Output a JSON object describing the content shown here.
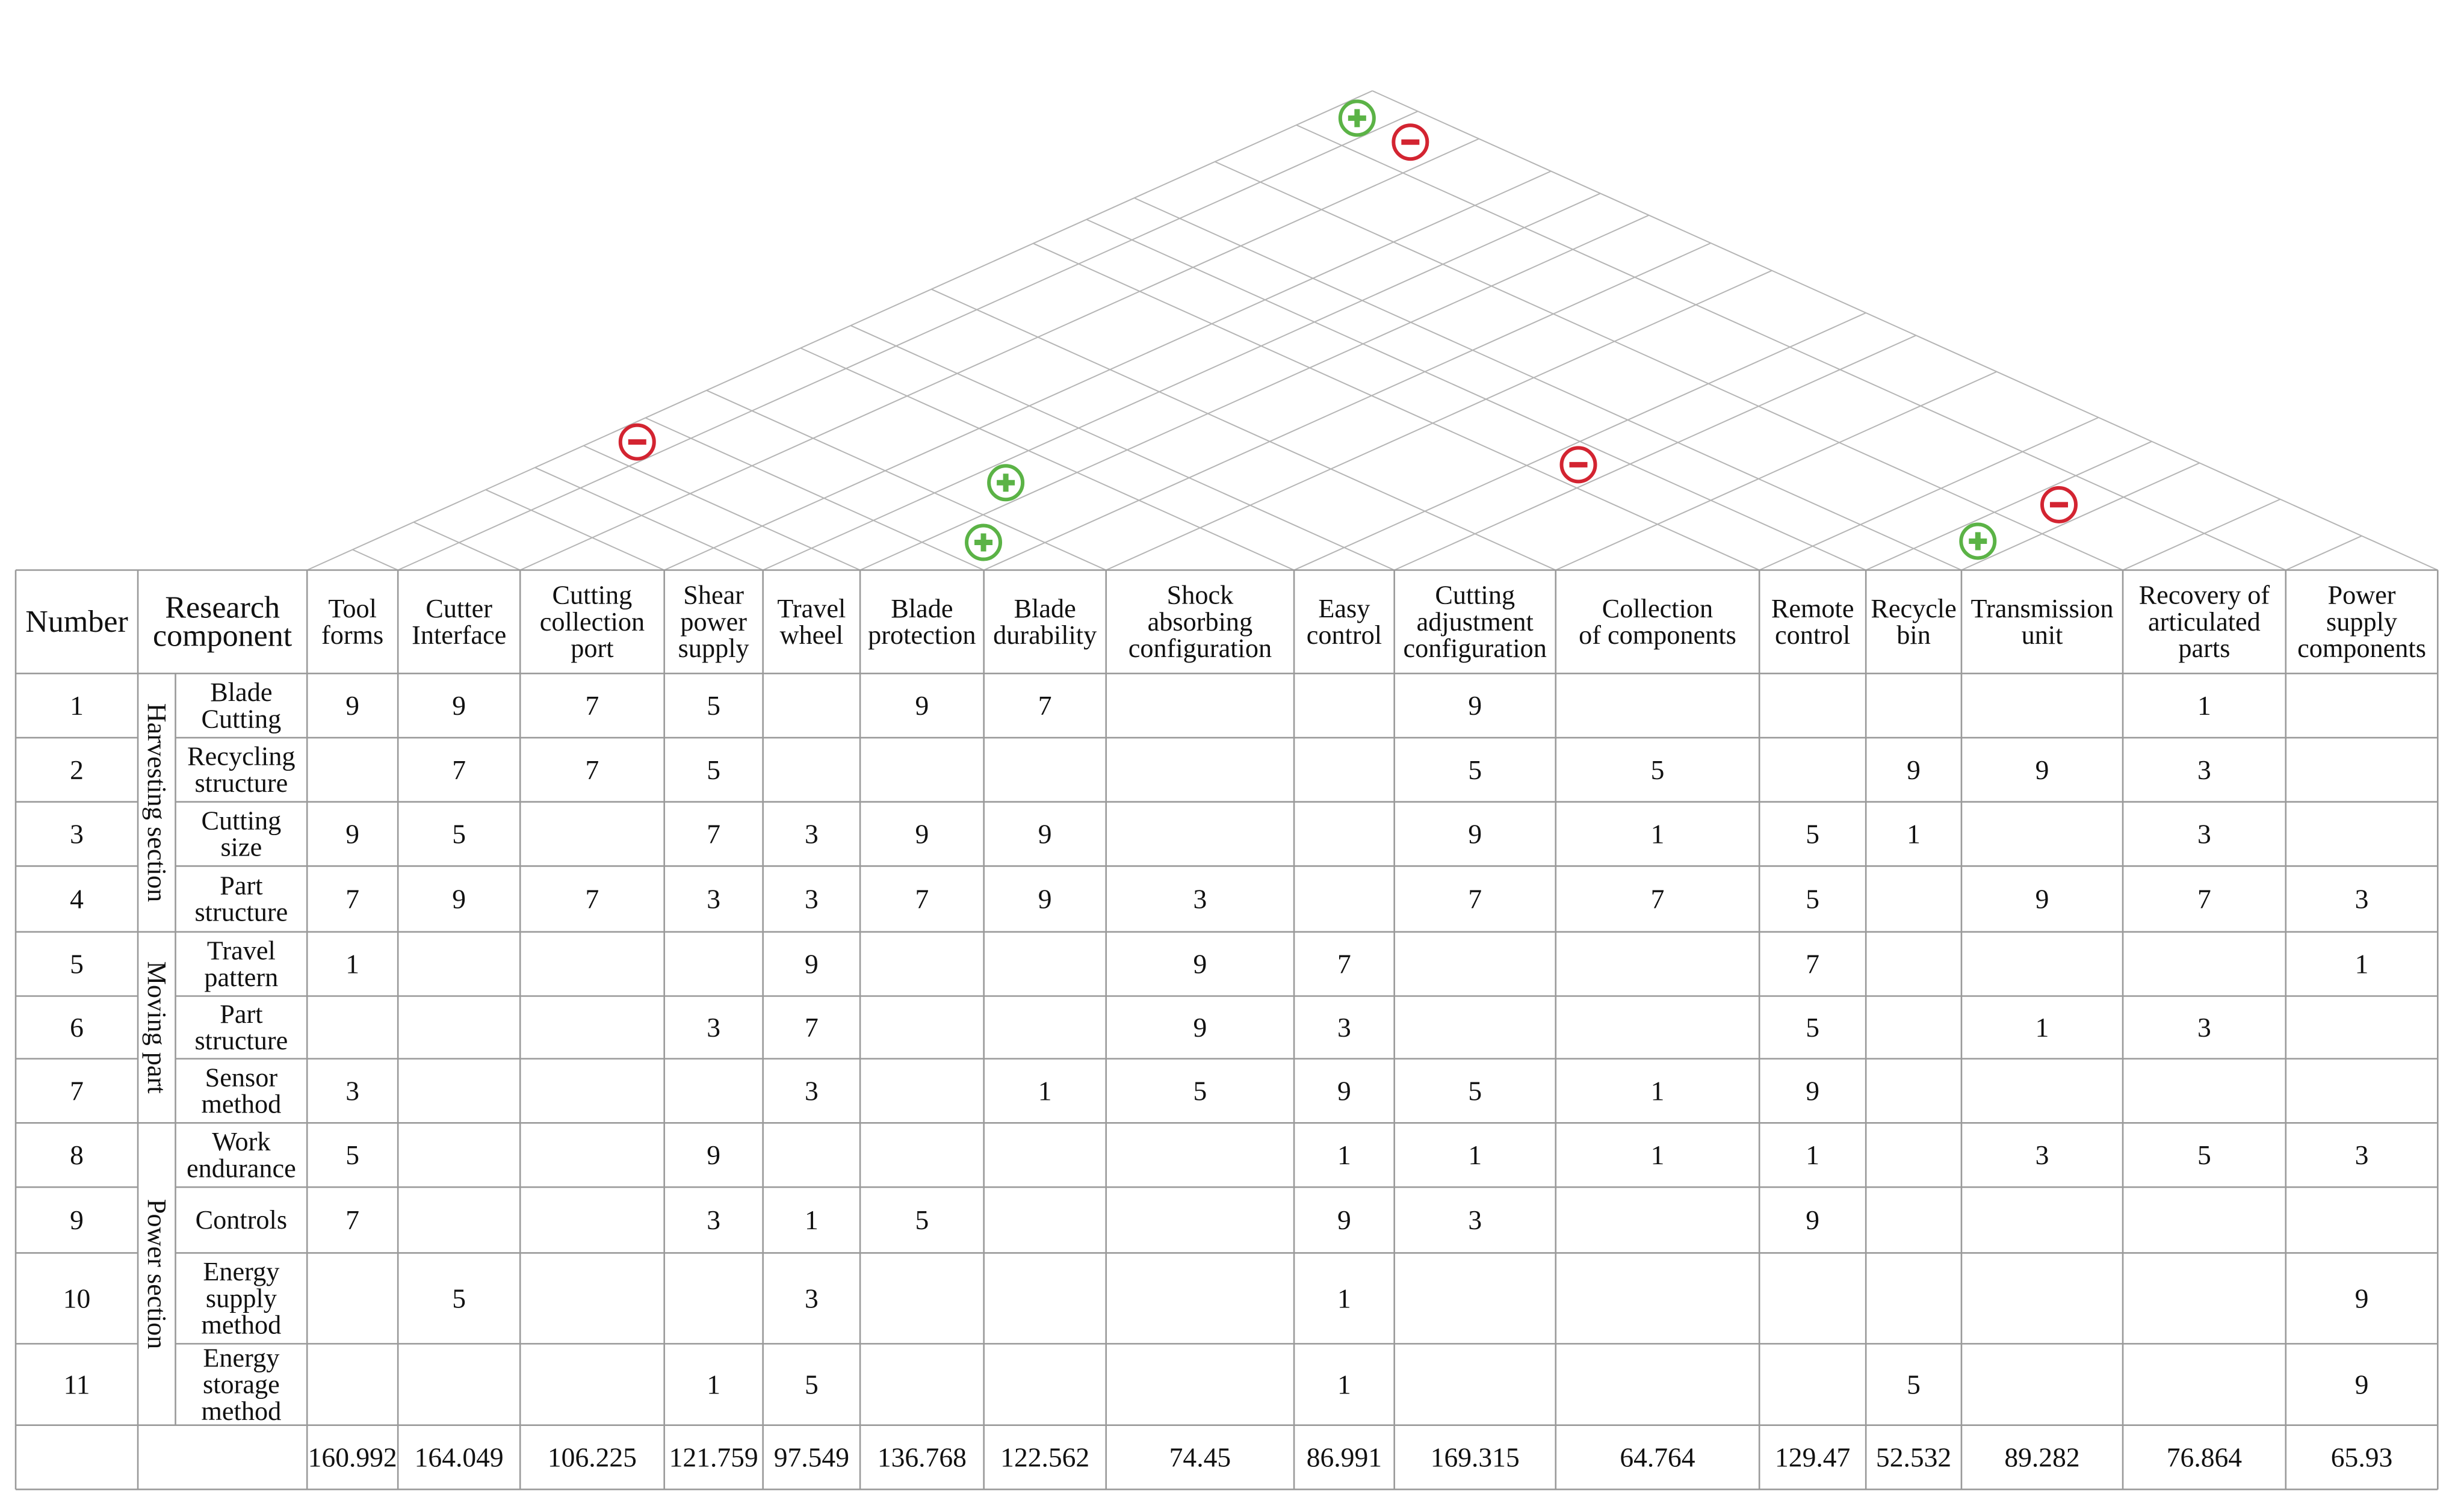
{
  "header": {
    "number": "Number",
    "research_component": [
      "Research",
      "component"
    ]
  },
  "engineering_features": [
    {
      "lines": [
        "Tool",
        "forms"
      ]
    },
    {
      "lines": [
        "Cutter",
        "Interface"
      ]
    },
    {
      "lines": [
        "Cutting",
        "collection",
        "port"
      ]
    },
    {
      "lines": [
        "Shear",
        "power",
        "supply"
      ]
    },
    {
      "lines": [
        "Travel",
        "wheel"
      ]
    },
    {
      "lines": [
        "Blade",
        "protection"
      ]
    },
    {
      "lines": [
        "Blade",
        "durability"
      ]
    },
    {
      "lines": [
        "Shock",
        "absorbing",
        "configuration"
      ]
    },
    {
      "lines": [
        "Easy",
        "control"
      ]
    },
    {
      "lines": [
        "Cutting",
        "adjustment",
        "configuration"
      ]
    },
    {
      "lines": [
        "Collection",
        "of components"
      ]
    },
    {
      "lines": [
        "Remote",
        "control"
      ]
    },
    {
      "lines": [
        "Recycle",
        "bin"
      ]
    },
    {
      "lines": [
        "Transmission",
        "unit"
      ]
    },
    {
      "lines": [
        "Recovery of",
        "articulated",
        "parts"
      ]
    },
    {
      "lines": [
        "Power",
        "supply",
        "components"
      ]
    }
  ],
  "groups": [
    {
      "label": "Harvesting section",
      "rows": [
        1,
        4
      ]
    },
    {
      "label": "Moving part",
      "rows": [
        5,
        7
      ]
    },
    {
      "label": "Power section",
      "rows": [
        8,
        11
      ]
    }
  ],
  "rows": [
    {
      "number": "1",
      "component": [
        "Blade",
        "Cutting"
      ],
      "values": [
        "9",
        "9",
        "7",
        "5",
        "",
        "9",
        "7",
        "",
        "",
        "9",
        "",
        "",
        "",
        "",
        "1",
        ""
      ]
    },
    {
      "number": "2",
      "component": [
        "Recycling",
        "structure"
      ],
      "values": [
        "",
        "7",
        "7",
        "5",
        "",
        "",
        "",
        "",
        "",
        "5",
        "5",
        "",
        "9",
        "9",
        "3",
        ""
      ]
    },
    {
      "number": "3",
      "component": [
        "Cutting",
        "size"
      ],
      "values": [
        "9",
        "5",
        "",
        "7",
        "3",
        "9",
        "9",
        "",
        "",
        "9",
        "1",
        "5",
        "1",
        "",
        "3",
        ""
      ]
    },
    {
      "number": "4",
      "component": [
        "Part",
        "structure"
      ],
      "values": [
        "7",
        "9",
        "7",
        "3",
        "3",
        "7",
        "9",
        "3",
        "",
        "7",
        "7",
        "5",
        "",
        "9",
        "7",
        "3"
      ]
    },
    {
      "number": "5",
      "component": [
        "Travel",
        "pattern"
      ],
      "values": [
        "1",
        "",
        "",
        "",
        "9",
        "",
        "",
        "9",
        "7",
        "",
        "",
        "7",
        "",
        "",
        "",
        "1"
      ]
    },
    {
      "number": "6",
      "component": [
        "Part",
        "structure"
      ],
      "values": [
        "",
        "",
        "",
        "3",
        "7",
        "",
        "",
        "9",
        "3",
        "",
        "",
        "5",
        "",
        "1",
        "3",
        ""
      ]
    },
    {
      "number": "7",
      "component": [
        "Sensor",
        "method"
      ],
      "values": [
        "3",
        "",
        "",
        "",
        "3",
        "",
        "1",
        "5",
        "9",
        "5",
        "1",
        "9",
        "",
        "",
        "",
        ""
      ]
    },
    {
      "number": "8",
      "component": [
        "Work",
        "endurance"
      ],
      "values": [
        "5",
        "",
        "",
        "9",
        "",
        "",
        "",
        "",
        "1",
        "1",
        "1",
        "1",
        "",
        "3",
        "5",
        "3"
      ]
    },
    {
      "number": "9",
      "component": [
        "Controls"
      ],
      "values": [
        "7",
        "",
        "",
        "3",
        "1",
        "5",
        "",
        "",
        "9",
        "3",
        "",
        "9",
        "",
        "",
        "",
        ""
      ]
    },
    {
      "number": "10",
      "component": [
        "Energy",
        "supply",
        "method"
      ],
      "values": [
        "",
        "5",
        "",
        "",
        "3",
        "",
        "",
        "",
        "1",
        "",
        "",
        "",
        "",
        "",
        "",
        "9"
      ]
    },
    {
      "number": "11",
      "component": [
        "Energy",
        "storage",
        "method"
      ],
      "values": [
        "",
        "",
        "",
        "1",
        "5",
        "",
        "",
        "",
        "1",
        "",
        "",
        "",
        "5",
        "",
        "",
        "9"
      ]
    }
  ],
  "totals": [
    "160.992",
    "164.049",
    "106.225",
    "121.759",
    "97.549",
    "136.768",
    "122.562",
    "74.45",
    "86.991",
    "169.315",
    "64.764",
    "129.47",
    "52.532",
    "89.282",
    "76.864",
    "65.93"
  ],
  "correlations": [
    {
      "a": 4,
      "b": 7,
      "sign": "+",
      "color": "#5bb346"
    },
    {
      "a": 5,
      "b": 6,
      "sign": "+",
      "color": "#5bb346"
    },
    {
      "a": 0,
      "b": 5,
      "sign": "-",
      "color": "#d32431"
    },
    {
      "a": 8,
      "b": 11,
      "sign": "-",
      "color": "#d32431"
    },
    {
      "a": 0,
      "b": 15,
      "sign": "+",
      "color": "#5bb346"
    },
    {
      "a": 1,
      "b": 15,
      "sign": "-",
      "color": "#d32431"
    },
    {
      "a": 12,
      "b": 13,
      "sign": "+",
      "color": "#5bb346"
    },
    {
      "a": 12,
      "b": 14,
      "sign": "-",
      "color": "#d32431"
    }
  ]
}
